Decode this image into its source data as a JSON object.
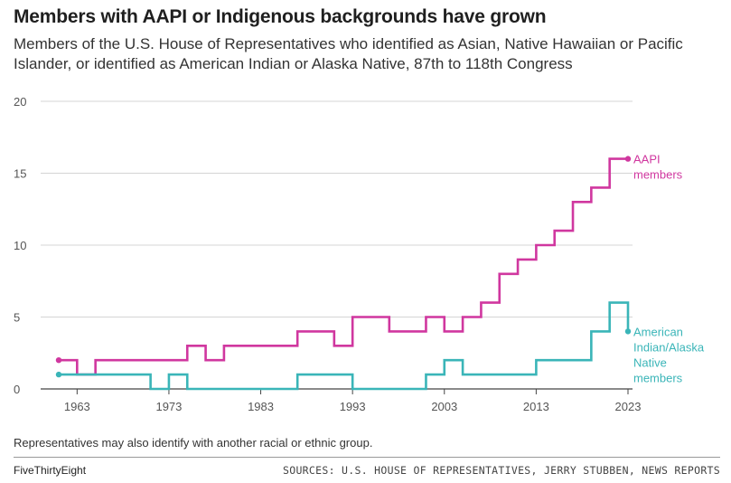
{
  "title": "Members with AAPI or Indigenous backgrounds have grown",
  "subtitle": "Members of the U.S. House of Representatives who identified as Asian, Native Hawaiian or Pacific Islander, or identified as American Indian or Alaska Native, 87th to 118th Congress",
  "note": "Representatives may also identify with another racial or ethnic group.",
  "footer": {
    "brand": "FiveThirtyEight",
    "sources": "SOURCES: U.S. HOUSE OF REPRESENTATIVES, JERRY STUBBEN, NEWS REPORTS"
  },
  "chart_data": {
    "type": "line",
    "step": true,
    "x_ticks": [
      "1963",
      "1973",
      "1983",
      "1993",
      "2003",
      "2013",
      "2023"
    ],
    "y_ticks": [
      "0",
      "5",
      "10",
      "15",
      "20"
    ],
    "xlim": [
      1961,
      2023
    ],
    "ylim": [
      0,
      20
    ],
    "grid": true,
    "series": [
      {
        "name": "AAPI members",
        "color": "#d0379f",
        "x": [
          1961,
          1963,
          1965,
          1967,
          1969,
          1971,
          1973,
          1975,
          1977,
          1979,
          1981,
          1983,
          1985,
          1987,
          1989,
          1991,
          1993,
          1995,
          1997,
          1999,
          2001,
          2003,
          2005,
          2007,
          2009,
          2011,
          2013,
          2015,
          2017,
          2019,
          2021,
          2023
        ],
        "y": [
          2,
          1,
          2,
          2,
          2,
          2,
          2,
          3,
          2,
          3,
          3,
          3,
          3,
          4,
          4,
          3,
          5,
          5,
          4,
          4,
          5,
          4,
          5,
          6,
          8,
          9,
          10,
          11,
          13,
          14,
          16,
          16
        ]
      },
      {
        "name": "American Indian/Alaska Native members",
        "color": "#3ab5b8",
        "x": [
          1961,
          1963,
          1965,
          1967,
          1969,
          1971,
          1973,
          1975,
          1977,
          1979,
          1981,
          1983,
          1985,
          1987,
          1989,
          1991,
          1993,
          1995,
          1997,
          1999,
          2001,
          2003,
          2005,
          2007,
          2009,
          2011,
          2013,
          2015,
          2017,
          2019,
          2021,
          2023
        ],
        "y": [
          1,
          1,
          1,
          1,
          1,
          0,
          1,
          0,
          0,
          0,
          0,
          0,
          0,
          1,
          1,
          1,
          0,
          0,
          0,
          0,
          1,
          2,
          1,
          1,
          1,
          1,
          2,
          2,
          2,
          4,
          6,
          4
        ]
      }
    ],
    "labels": [
      {
        "series": 0,
        "lines": [
          "AAPI",
          "members"
        ]
      },
      {
        "series": 1,
        "lines": [
          "American",
          "Indian/Alaska",
          "Native",
          "members"
        ]
      }
    ]
  }
}
